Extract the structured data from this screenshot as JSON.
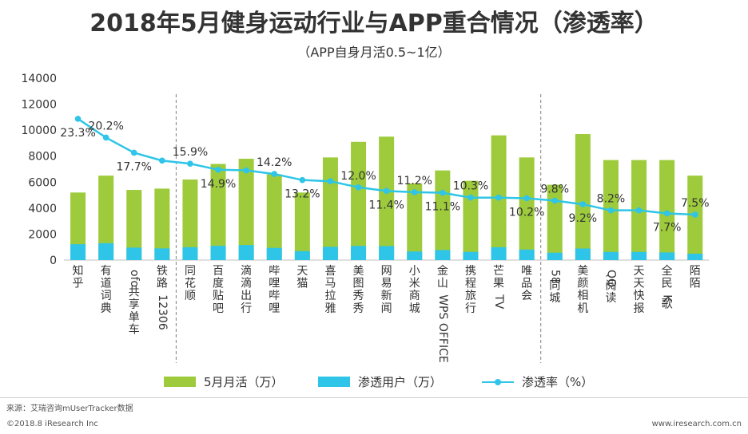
{
  "header": {
    "title": "2018年5月健身运动行业与APP重合情况（渗透率）",
    "subtitle": "（APP自身月活0.5~1亿）"
  },
  "chart_data": {
    "type": "bar",
    "title": "2018年5月健身运动行业与APP重合情况（渗透率）",
    "subtitle": "（APP自身月活0.5~1亿）",
    "categories": [
      "知乎",
      "有道词典",
      "ofo共享单车",
      "铁路12306",
      "同花顺",
      "百度贴吧",
      "滴滴出行",
      "哔哩哔哩",
      "天猫",
      "喜马拉雅",
      "美图秀秀",
      "网易新闻",
      "小米商城",
      "金山WPS OFFICE",
      "携程旅行",
      "芒果TV",
      "唯品会",
      "58同城",
      "美颜相机",
      "QQ阅读",
      "天天快报",
      "全民K歌",
      "陌陌"
    ],
    "ylim": [
      0,
      14000
    ],
    "yticks": [
      0,
      2000,
      4000,
      6000,
      8000,
      10000,
      12000,
      14000
    ],
    "series": [
      {
        "name": "5月月活（万）",
        "type": "bar",
        "color": "#9dcb3b",
        "values": [
          5200,
          6500,
          5400,
          5500,
          6200,
          7400,
          7800,
          6600,
          5200,
          7900,
          9100,
          9500,
          5900,
          6900,
          6100,
          9600,
          7900,
          5800,
          9700,
          7700,
          7700,
          7700,
          6500
        ]
      },
      {
        "name": "渗透用户（万）",
        "type": "bar",
        "color": "#2ec5e8",
        "values": [
          1220,
          1300,
          960,
          900,
          990,
          1100,
          1160,
          940,
          690,
          1020,
          1090,
          1080,
          660,
          770,
          630,
          990,
          810,
          570,
          890,
          630,
          630,
          590,
          490
        ]
      },
      {
        "name": "渗透率（%）",
        "type": "line",
        "color": "#2ec5e8",
        "axis_max_rate": 30,
        "values": [
          23.3,
          20.2,
          17.7,
          16.4,
          15.9,
          14.9,
          14.8,
          14.2,
          13.2,
          13.0,
          12.0,
          11.4,
          11.2,
          11.1,
          10.3,
          10.3,
          10.2,
          9.8,
          9.2,
          8.2,
          8.2,
          7.7,
          7.5
        ],
        "labels": [
          "23.3%",
          "20.2%",
          "17.7%",
          "",
          "15.9%",
          "14.9%",
          "",
          "14.2%",
          "13.2%",
          "",
          "12.0%",
          "11.4%",
          "11.2%",
          "11.1%",
          "10.3%",
          "",
          "10.2%",
          "9.8%",
          "9.2%",
          "8.2%",
          "",
          "7.7%",
          "7.5%"
        ],
        "label_positions": [
          "below",
          "above",
          "below",
          "",
          "above",
          "below",
          "",
          "above",
          "below",
          "",
          "above",
          "below",
          "above",
          "below",
          "above",
          "",
          "below",
          "above",
          "below",
          "above",
          "",
          "below",
          "above"
        ]
      }
    ],
    "group_dividers_after": [
      "铁路12306",
      "唯品会"
    ]
  },
  "legend": {
    "items": [
      {
        "label": "5月月活（万）",
        "color": "#9dcb3b"
      },
      {
        "label": "渗透用户（万）",
        "color": "#2ec5e8"
      },
      {
        "label": "渗透率（%）",
        "color": "#2ec5e8"
      }
    ]
  },
  "footer": {
    "source": "来源：艾瑞咨询mUserTracker数据",
    "copyright": "©2018.8 iResearch Inc",
    "website": "www.iresearch.com.cn"
  }
}
